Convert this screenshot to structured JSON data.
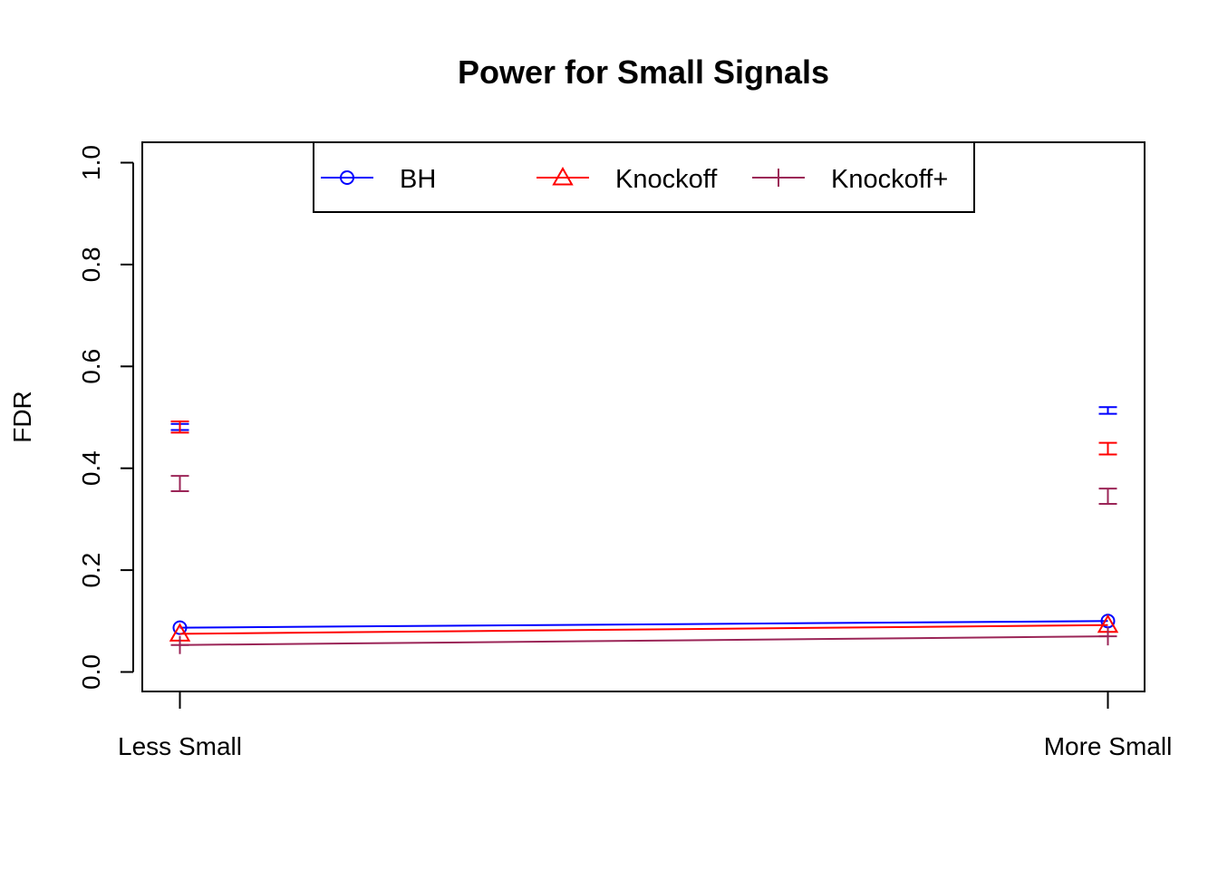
{
  "chart_data": {
    "type": "line",
    "title": "Power for Small Signals",
    "xlabel": "",
    "ylabel": "FDR",
    "categories": [
      "Less Small",
      "More Small"
    ],
    "ylim": [
      0,
      1
    ],
    "yticks": [
      "0.0",
      "0.2",
      "0.4",
      "0.6",
      "0.8",
      "1.0"
    ],
    "grid": false,
    "legend_position": "top-center",
    "series": [
      {
        "name": "BH",
        "color": "#0000ff",
        "marker": "circle",
        "values": [
          0.087,
          0.1
        ],
        "error_bars": [
          [
            0.475,
            0.487
          ],
          [
            0.507,
            0.52
          ]
        ]
      },
      {
        "name": "Knockoff",
        "color": "#ff0000",
        "marker": "triangle",
        "values": [
          0.075,
          0.092
        ],
        "error_bars": [
          [
            0.47,
            0.492
          ],
          [
            0.427,
            0.45
          ]
        ]
      },
      {
        "name": "Knockoff+",
        "color": "#9b2557",
        "marker": "plus",
        "values": [
          0.053,
          0.07
        ],
        "error_bars": [
          [
            0.355,
            0.385
          ],
          [
            0.33,
            0.36
          ]
        ]
      }
    ]
  }
}
